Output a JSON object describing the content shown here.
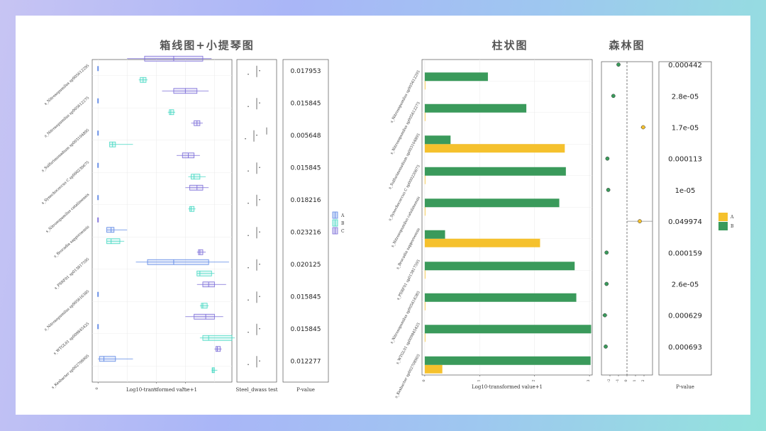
{
  "titles": {
    "boxplot": "箱线图+小提琴图",
    "bar": "柱状图",
    "forest": "森林图"
  },
  "labels": {
    "box_x": "Log10-transformed value+1",
    "steel_x": "Steel_dwass test",
    "pvalue_x": "P-value",
    "bar_x": "Log10-transformed value+1",
    "forest_p_x": "P-value"
  },
  "colors": {
    "groupA": "#5b86e5",
    "groupB": "#45d8c2",
    "groupC": "#7b6cd8",
    "barA": "#f5c12d",
    "barB": "#3a9a5b",
    "steelLine": "#333333"
  },
  "legend_box": [
    "A",
    "B",
    "C"
  ],
  "legend_bar": [
    "A",
    "B"
  ],
  "chart_data": [
    {
      "type": "box",
      "title": "箱线图+小提琴图",
      "xlabel": "Log10-transformed value+1",
      "xlim": [
        -0.2,
        4.6
      ],
      "xticks": [
        0,
        2,
        3
      ],
      "categories": [
        "s_Nitrosopumilus sp905612295",
        "s_Nitrosopumilus sp905612275",
        "s_Sulfurimonadium sp003104895",
        "s_Synechococcus C sp000230675",
        "s_Nitrosopumilus catalimensis",
        "s_Brocadia sapporoensis",
        "s_PSRF01 sp013817595",
        "s_Nitrosopumilus sp905616385",
        "s_WTGL01 sp009845425",
        "s_Kexbacter sp002708905"
      ],
      "series": [
        {
          "name": "A",
          "boxes": [
            [
              0,
              0,
              0,
              0,
              0
            ],
            [
              0,
              0,
              0,
              0,
              0
            ],
            [
              0,
              0,
              0,
              0,
              0
            ],
            [
              0,
              0,
              0,
              0,
              0
            ],
            [
              0,
              0,
              0,
              0,
              0
            ],
            [
              0.3,
              0.3,
              0.45,
              0.55,
              1.0
            ],
            [
              1.3,
              1.7,
              2.6,
              3.8,
              4.5
            ],
            [
              0,
              0,
              0,
              0,
              0
            ],
            [
              0,
              0,
              0,
              0,
              0
            ],
            [
              0,
              0.05,
              0.2,
              0.6,
              1.2
            ]
          ]
        },
        {
          "name": "B",
          "boxes": [
            [
              1.4,
              1.45,
              1.55,
              1.65,
              1.7
            ],
            [
              2.4,
              2.45,
              2.5,
              2.6,
              2.65
            ],
            [
              0.4,
              0.4,
              0.5,
              0.6,
              1.2
            ],
            [
              3.1,
              3.2,
              3.3,
              3.5,
              3.7
            ],
            [
              3.1,
              3.15,
              3.2,
              3.3,
              3.35
            ],
            [
              0.3,
              0.3,
              0.45,
              0.75,
              0.9
            ],
            [
              3.4,
              3.4,
              3.5,
              3.9,
              4.0
            ],
            [
              3.5,
              3.55,
              3.6,
              3.75,
              3.8
            ],
            [
              3.5,
              3.6,
              3.8,
              4.6,
              4.7
            ],
            [
              3.9,
              3.92,
              3.95,
              4.0,
              4.1
            ]
          ]
        },
        {
          "name": "C",
          "boxes": [
            [
              1.0,
              1.6,
              2.6,
              3.6,
              3.9
            ],
            [
              2.2,
              2.6,
              3.0,
              3.4,
              3.8
            ],
            [
              3.2,
              3.3,
              3.4,
              3.5,
              3.6
            ],
            [
              2.7,
              2.9,
              3.1,
              3.3,
              3.5
            ],
            [
              3.0,
              3.15,
              3.4,
              3.6,
              3.8
            ],
            [
              0,
              0,
              0,
              0,
              0
            ],
            [
              3.4,
              3.45,
              3.5,
              3.6,
              3.7
            ],
            [
              3.4,
              3.6,
              3.8,
              4.0,
              4.4
            ],
            [
              3.0,
              3.3,
              3.7,
              4.0,
              4.3
            ],
            [
              4.0,
              4.05,
              4.1,
              4.2,
              4.25
            ]
          ]
        }
      ],
      "legend": [
        "A",
        "B",
        "C"
      ]
    },
    {
      "type": "table",
      "title": "P-value",
      "categories": [
        "s_Nitrosopumilus sp905612295",
        "s_Nitrosopumilus sp905612275",
        "s_Sulfurimonadium sp003104895",
        "s_Synechococcus C sp000230675",
        "s_Nitrosopumilus catalimensis",
        "s_Brocadia sapporoensis",
        "s_PSRF01 sp013817595",
        "s_Nitrosopumilus sp905616385",
        "s_WTGL01 sp009845425",
        "s_Kexbacter sp002708905"
      ],
      "values": [
        "0.017953",
        "0.015845",
        "0.005648",
        "0.015845",
        "0.018216",
        "0.023216",
        "0.020125",
        "0.015845",
        "0.015845",
        "0.012277"
      ]
    },
    {
      "type": "bar",
      "title": "柱状图",
      "xlabel": "Log10-transformed value+1",
      "xlim": [
        -0.05,
        3.05
      ],
      "xticks": [
        0,
        1,
        2,
        3
      ],
      "categories": [
        "s_Nitrosopumilus sp905612295",
        "s_Nitrosopumilus sp905612275",
        "s_Sulfurimonadium sp003104895",
        "s_Synechococcus C sp000230675",
        "s_Nitrosopumilus catalimensis",
        "s_Brocadia sapporoensis",
        "s_PSRF01 sp013817595",
        "s_Nitrosopumilus sp905616385",
        "s_WTGL01 sp009845425",
        "s_Kexbacter sp002708905"
      ],
      "series": [
        {
          "name": "A",
          "values": [
            0.01,
            0.01,
            2.55,
            0.01,
            0.01,
            2.1,
            0.01,
            0.01,
            0.01,
            0.32
          ]
        },
        {
          "name": "B",
          "values": [
            1.15,
            1.85,
            0.47,
            2.57,
            2.45,
            0.37,
            2.73,
            2.76,
            3.03,
            3.02
          ]
        }
      ],
      "legend": [
        "A",
        "B"
      ]
    },
    {
      "type": "scatter",
      "title": "森林图",
      "xlim": [
        -3.0,
        3.0
      ],
      "xticks": [
        -2,
        -1,
        0,
        1,
        2
      ],
      "categories": [
        "s_Nitrosopumilus sp905612295",
        "s_Nitrosopumilus sp905612275",
        "s_Sulfurimonadium sp003104895",
        "s_Synechococcus C sp000230675",
        "s_Nitrosopumilus catalimensis",
        "s_Brocadia sapporoensis",
        "s_PSRF01 sp013817595",
        "s_Nitrosopumilus sp905616385",
        "s_WTGL01 sp009845425",
        "s_Kexbacter sp002708905"
      ],
      "estimates": [
        -1.0,
        -1.6,
        1.9,
        -2.3,
        -2.2,
        1.5,
        -2.4,
        -2.4,
        -2.6,
        -2.5
      ],
      "ci_low": [
        -1.05,
        -1.65,
        1.6,
        -2.35,
        -2.25,
        0.0,
        -2.45,
        -2.45,
        -2.9,
        -2.7
      ],
      "ci_high": [
        -0.95,
        -1.55,
        2.2,
        -2.25,
        -2.15,
        3.0,
        -2.35,
        -2.35,
        -2.3,
        -2.3
      ],
      "group": [
        "B",
        "B",
        "A",
        "B",
        "B",
        "A",
        "B",
        "B",
        "B",
        "B"
      ]
    },
    {
      "type": "table",
      "title": "P-value",
      "categories": [
        "s_Nitrosopumilus sp905612295",
        "s_Nitrosopumilus sp905612275",
        "s_Sulfurimonadium sp003104895",
        "s_Synechococcus C sp000230675",
        "s_Nitrosopumilus catalimensis",
        "s_Brocadia sapporoensis",
        "s_PSRF01 sp013817595",
        "s_Nitrosopumilus sp905616385",
        "s_WTGL01 sp009845425",
        "s_Kexbacter sp002708905"
      ],
      "values": [
        "0.000442",
        "2.8e-05",
        "1.7e-05",
        "0.000113",
        "1e-05",
        "0.049974",
        "0.000159",
        "2.6e-05",
        "0.000629",
        "0.000693"
      ]
    }
  ]
}
